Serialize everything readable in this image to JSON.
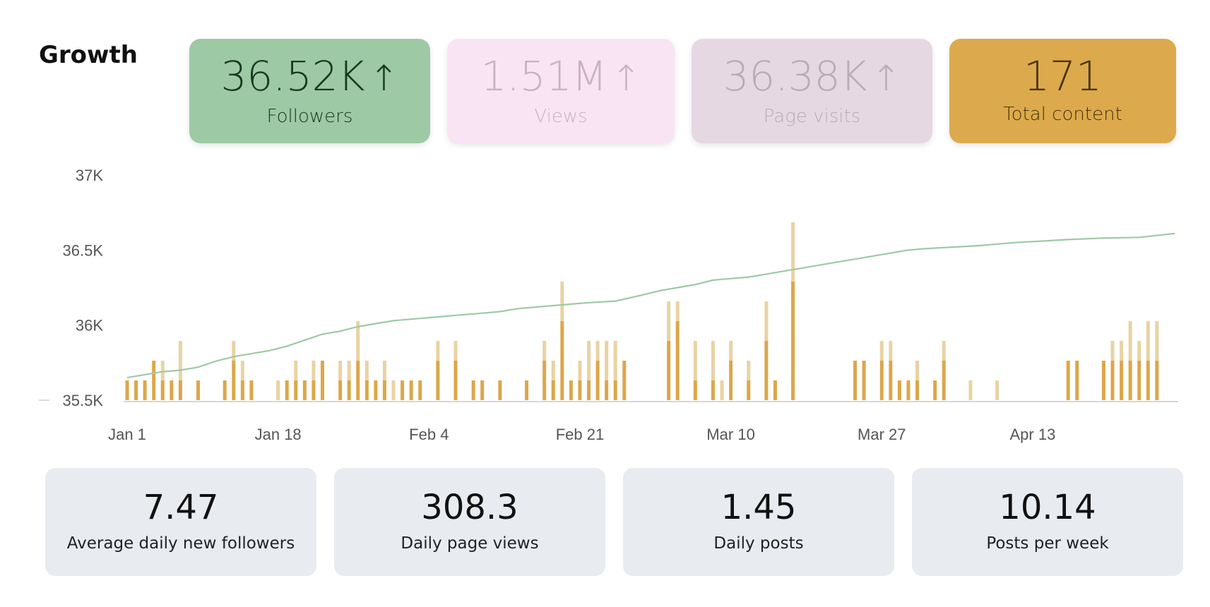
{
  "title": "Growth",
  "metrics": [
    {
      "value": "36.52K",
      "arrow": "↑",
      "label": "Followers",
      "color": "#9ec9a5",
      "active": true
    },
    {
      "value": "1.51M",
      "arrow": "↑",
      "label": "Views",
      "color": "#f9e4f3",
      "active": false
    },
    {
      "value": "36.38K",
      "arrow": "↑",
      "label": "Page visits",
      "color": "#e6d8e2",
      "active": false
    },
    {
      "value": "171",
      "arrow": "",
      "label": "Total content",
      "color": "#dcaa4d",
      "active": false
    }
  ],
  "chart_data": {
    "type": "line",
    "y_ticks": [
      "37K",
      "36.5K",
      "36K",
      "35.5K"
    ],
    "ylim": [
      35500,
      37000
    ],
    "x_ticks": [
      "Jan 1",
      "Jan 18",
      "Feb 4",
      "Feb 21",
      "Mar 10",
      "Mar 27",
      "Apr 13"
    ],
    "x_range_days": [
      0,
      118
    ],
    "line_color": "#9ec9a5",
    "bar_color_dark": "#dca74a",
    "bar_color_light": "#e9d3a3",
    "followers": [
      [
        0,
        35650
      ],
      [
        2,
        35670
      ],
      [
        4,
        35690
      ],
      [
        6,
        35700
      ],
      [
        8,
        35720
      ],
      [
        10,
        35760
      ],
      [
        12,
        35790
      ],
      [
        14,
        35810
      ],
      [
        16,
        35830
      ],
      [
        18,
        35860
      ],
      [
        20,
        35900
      ],
      [
        22,
        35940
      ],
      [
        24,
        35960
      ],
      [
        26,
        35990
      ],
      [
        28,
        36010
      ],
      [
        30,
        36030
      ],
      [
        32,
        36040
      ],
      [
        34,
        36050
      ],
      [
        36,
        36060
      ],
      [
        38,
        36070
      ],
      [
        40,
        36080
      ],
      [
        42,
        36090
      ],
      [
        44,
        36110
      ],
      [
        46,
        36120
      ],
      [
        48,
        36130
      ],
      [
        50,
        36140
      ],
      [
        52,
        36150
      ],
      [
        55,
        36160
      ],
      [
        58,
        36200
      ],
      [
        60,
        36230
      ],
      [
        62,
        36250
      ],
      [
        64,
        36270
      ],
      [
        66,
        36300
      ],
      [
        68,
        36310
      ],
      [
        70,
        36320
      ],
      [
        72,
        36340
      ],
      [
        74,
        36360
      ],
      [
        76,
        36380
      ],
      [
        78,
        36400
      ],
      [
        80,
        36420
      ],
      [
        82,
        36440
      ],
      [
        84,
        36460
      ],
      [
        86,
        36480
      ],
      [
        88,
        36500
      ],
      [
        90,
        36510
      ],
      [
        93,
        36520
      ],
      [
        96,
        36530
      ],
      [
        98,
        36540
      ],
      [
        100,
        36550
      ],
      [
        103,
        36560
      ],
      [
        106,
        36570
      ],
      [
        110,
        36580
      ],
      [
        114,
        36585
      ],
      [
        118,
        36610
      ]
    ],
    "bars": [
      [
        0,
        1,
        0
      ],
      [
        1,
        1,
        0
      ],
      [
        2,
        1,
        0
      ],
      [
        3,
        2,
        0
      ],
      [
        4,
        1,
        1
      ],
      [
        5,
        1,
        0
      ],
      [
        6,
        1,
        2
      ],
      [
        8,
        1,
        0
      ],
      [
        11,
        1,
        0
      ],
      [
        12,
        2,
        1
      ],
      [
        13,
        1,
        1
      ],
      [
        14,
        1,
        0
      ],
      [
        17,
        0,
        1
      ],
      [
        18,
        1,
        0
      ],
      [
        19,
        1,
        1
      ],
      [
        20,
        1,
        0
      ],
      [
        21,
        1,
        1
      ],
      [
        22,
        2,
        0
      ],
      [
        24,
        1,
        1
      ],
      [
        25,
        1,
        1
      ],
      [
        26,
        2,
        2
      ],
      [
        27,
        1,
        1
      ],
      [
        28,
        1,
        0
      ],
      [
        29,
        1,
        1
      ],
      [
        30,
        0,
        1
      ],
      [
        31,
        1,
        0
      ],
      [
        32,
        1,
        0
      ],
      [
        33,
        1,
        0
      ],
      [
        35,
        2,
        1
      ],
      [
        37,
        2,
        1
      ],
      [
        39,
        1,
        0
      ],
      [
        40,
        1,
        0
      ],
      [
        42,
        1,
        0
      ],
      [
        45,
        1,
        0
      ],
      [
        47,
        2,
        1
      ],
      [
        48,
        1,
        1
      ],
      [
        49,
        4,
        2
      ],
      [
        50,
        1,
        0
      ],
      [
        51,
        1,
        1
      ],
      [
        52,
        1,
        2
      ],
      [
        53,
        2,
        1
      ],
      [
        54,
        1,
        2
      ],
      [
        55,
        1,
        2
      ],
      [
        56,
        2,
        0
      ],
      [
        61,
        3,
        2
      ],
      [
        62,
        4,
        1
      ],
      [
        64,
        1,
        2
      ],
      [
        66,
        1,
        2
      ],
      [
        67,
        0,
        1
      ],
      [
        68,
        2,
        1
      ],
      [
        70,
        1,
        1
      ],
      [
        72,
        3,
        2
      ],
      [
        73,
        1,
        0
      ],
      [
        75,
        6,
        3
      ],
      [
        82,
        2,
        0
      ],
      [
        83,
        2,
        0
      ],
      [
        85,
        2,
        1
      ],
      [
        86,
        2,
        1
      ],
      [
        87,
        1,
        0
      ],
      [
        88,
        1,
        0
      ],
      [
        89,
        1,
        1
      ],
      [
        91,
        1,
        0
      ],
      [
        92,
        2,
        1
      ],
      [
        95,
        0,
        1
      ],
      [
        98,
        0,
        1
      ],
      [
        106,
        2,
        0
      ],
      [
        107,
        2,
        0
      ],
      [
        110,
        2,
        0
      ],
      [
        111,
        2,
        1
      ],
      [
        112,
        2,
        1
      ],
      [
        113,
        2,
        2
      ],
      [
        114,
        2,
        1
      ],
      [
        115,
        2,
        2
      ],
      [
        116,
        2,
        2
      ]
    ]
  },
  "stats": [
    {
      "value": "7.47",
      "label": "Average daily new followers"
    },
    {
      "value": "308.3",
      "label": "Daily page views"
    },
    {
      "value": "1.45",
      "label": "Daily posts"
    },
    {
      "value": "10.14",
      "label": "Posts per week"
    }
  ]
}
